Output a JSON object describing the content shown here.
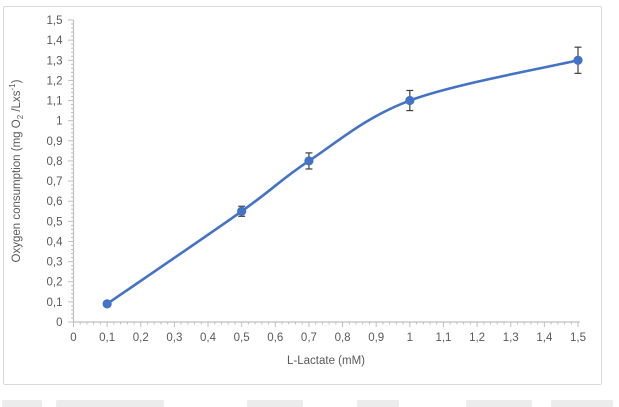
{
  "chart_data": {
    "type": "line",
    "title": "",
    "xlabel": "L-Lactate (mM)",
    "ylabel": {
      "pre": "Oxygen consumption (mg O",
      "sub": "2",
      "mid": " /Lxs",
      "sup": "-1",
      "post": ")"
    },
    "x": [
      0.1,
      0.5,
      0.7,
      1.0,
      1.5
    ],
    "y": [
      0.09,
      0.55,
      0.8,
      1.1,
      1.3
    ],
    "error_y": [
      0.01,
      0.025,
      0.04,
      0.05,
      0.065
    ],
    "xlim": [
      0,
      1.5
    ],
    "ylim": [
      0,
      1.5
    ],
    "x_major_unit": 0.1,
    "x_minor_unit": 0.02,
    "y_major_unit": 0.1,
    "y_minor_unit": 0.02,
    "x_tick_labels": [
      "0",
      "0,1",
      "0,2",
      "0,3",
      "0,4",
      "0,5",
      "0,6",
      "0,7",
      "0,8",
      "0,9",
      "1",
      "1,1",
      "1,2",
      "1,3",
      "1,4",
      "1,5"
    ],
    "y_tick_labels": [
      "0",
      "0,1",
      "0,2",
      "0,3",
      "0,4",
      "0,5",
      "0,6",
      "0,7",
      "0,8",
      "0,9",
      "1",
      "1,1",
      "1,2",
      "1,3",
      "1,4",
      "1,5"
    ],
    "smooth": true,
    "legend": "none",
    "grid": "off",
    "marker": "circle",
    "colors": {
      "series": "#4472C4",
      "error_bar": "#404040",
      "axis": "#BFBFBF",
      "tick_label": "#595959",
      "axis_title": "#595959",
      "chart_border": "#D9D9D9",
      "background": "#FFFFFF"
    }
  }
}
